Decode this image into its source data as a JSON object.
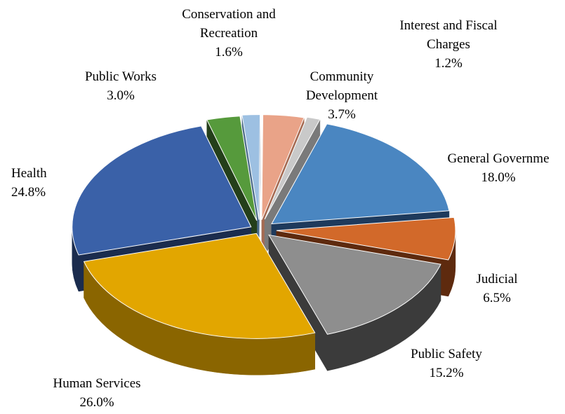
{
  "chart_data": {
    "type": "pie",
    "style": "3d-exploded",
    "title": "",
    "slices": [
      {
        "label": "General Government",
        "value": 18.0,
        "value_text": "18.0%",
        "color": "#4A86C1",
        "side": "#1E3A5C"
      },
      {
        "label": "Judicial",
        "value": 6.5,
        "value_text": "6.5%",
        "color": "#D2692A",
        "side": "#5E2A0E"
      },
      {
        "label": "Public Safety",
        "value": 15.2,
        "value_text": "15.2%",
        "color": "#8E8E8E",
        "side": "#3B3B3B"
      },
      {
        "label": "Human Services",
        "value": 26.0,
        "value_text": "26.0%",
        "color": "#E2A600",
        "side": "#8A6500"
      },
      {
        "label": "Health",
        "value": 24.8,
        "value_text": "24.8%",
        "color": "#3A61A8",
        "side": "#1B2C4E"
      },
      {
        "label": "Public Works",
        "value": 3.0,
        "value_text": "3.0%",
        "color": "#569A3C",
        "side": "#243F1A"
      },
      {
        "label": "Conservation and Recreation",
        "value": 1.6,
        "value_text": "1.6%",
        "color": "#9DC0E2",
        "side": "#4A6A8A"
      },
      {
        "label": "Community Development",
        "value": 3.7,
        "value_text": "3.7%",
        "color": "#E9A388",
        "side": "#A56A52"
      },
      {
        "label": "Interest and Fiscal Charges",
        "value": 1.2,
        "value_text": "1.2%",
        "color": "#C9C9C9",
        "side": "#7A7A7A"
      }
    ],
    "labels_displayed": [
      {
        "lines": [
          "General Governme"
        ],
        "value_text": "18.0%"
      },
      {
        "lines": [
          "Judicial"
        ],
        "value_text": "6.5%"
      },
      {
        "lines": [
          "Public Safety"
        ],
        "value_text": "15.2%"
      },
      {
        "lines": [
          "Human Services"
        ],
        "value_text": "26.0%"
      },
      {
        "lines": [
          "Health"
        ],
        "value_text": "24.8%"
      },
      {
        "lines": [
          "Public Works"
        ],
        "value_text": "3.0%"
      },
      {
        "lines": [
          "Conservation and",
          "Recreation"
        ],
        "value_text": "1.6%"
      },
      {
        "lines": [
          "Community",
          "Development"
        ],
        "value_text": "3.7%"
      },
      {
        "lines": [
          "Interest and Fiscal",
          "Charges"
        ],
        "value_text": "1.2%"
      }
    ]
  }
}
